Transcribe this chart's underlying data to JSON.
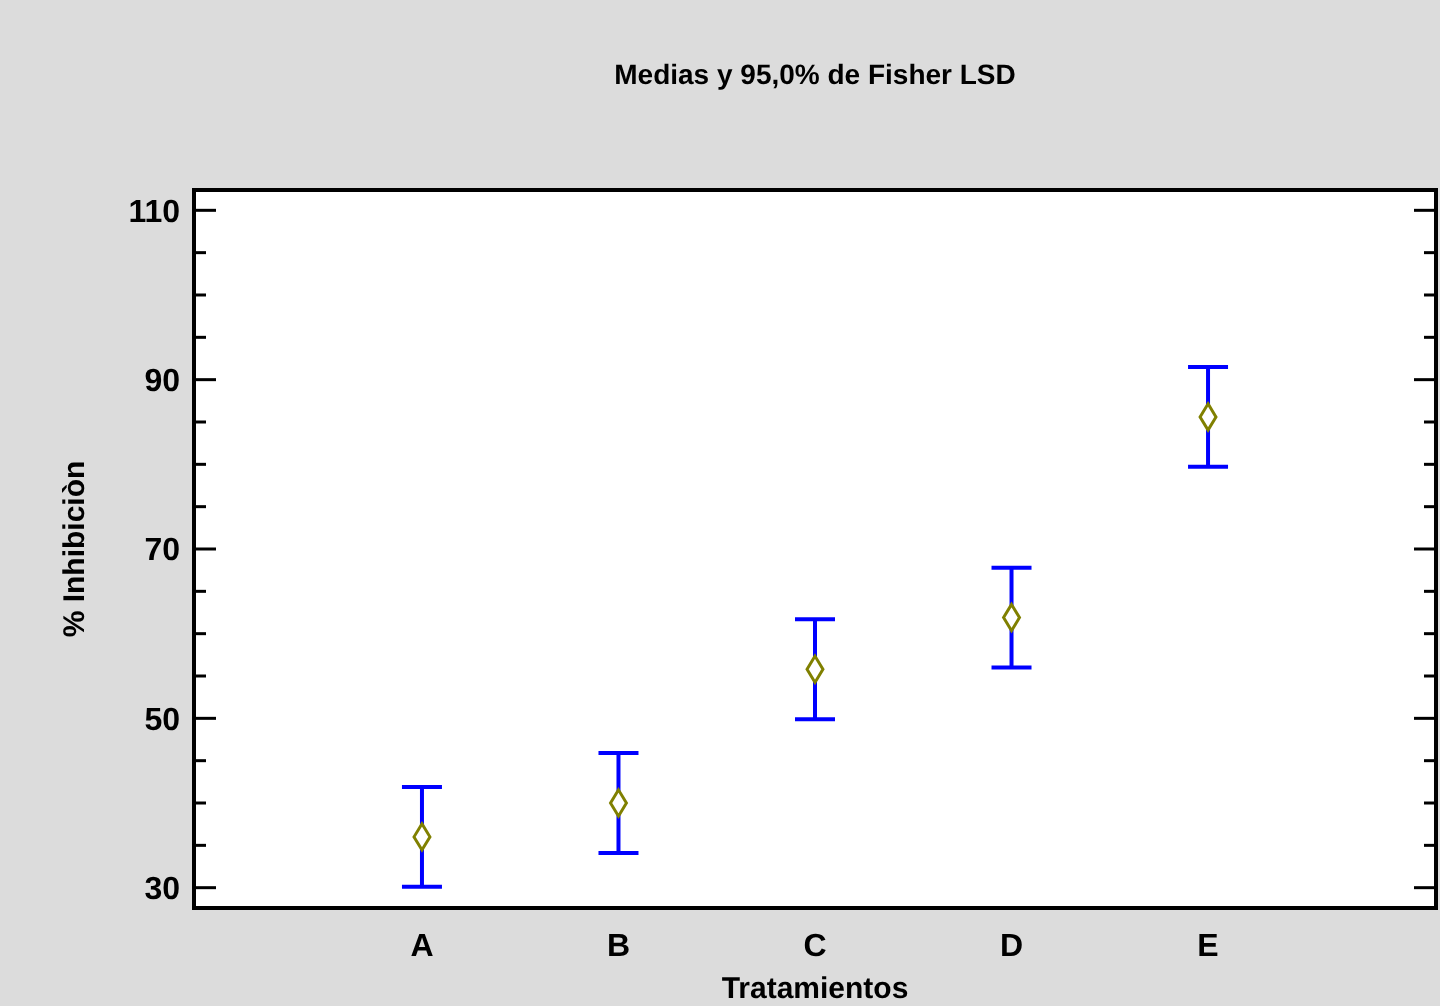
{
  "chart_data": {
    "type": "scatter",
    "title": "Medias y 95,0% de Fisher LSD",
    "xlabel": "Tratamientos",
    "ylabel": "% Inhibiciòn",
    "categories": [
      "A",
      "B",
      "C",
      "D",
      "E"
    ],
    "series": [
      {
        "color": "#808000",
        "values": [
          36.0,
          40.0,
          55.8,
          61.9,
          85.6
        ],
        "errors": [
          5.9,
          5.9,
          5.9,
          5.9,
          5.9
        ]
      }
    ],
    "marker": "diamond",
    "grid": false,
    "ylim": [
      27.6,
      112.4
    ],
    "yticks": [
      30,
      {
        "value": 35,
        "label": null
      },
      {
        "value": 40,
        "label": null
      },
      {
        "value": 45,
        "label": null
      },
      50,
      {
        "value": 55,
        "label": null
      },
      {
        "value": 60,
        "label": null
      },
      {
        "value": 65,
        "label": null
      },
      70,
      {
        "value": 75,
        "label": null
      },
      {
        "value": 80,
        "label": null
      },
      {
        "value": 85,
        "label": null
      },
      90,
      {
        "value": 95,
        "label": null
      },
      {
        "value": 100,
        "label": null
      },
      {
        "value": 105,
        "label": null
      },
      110
    ]
  }
}
